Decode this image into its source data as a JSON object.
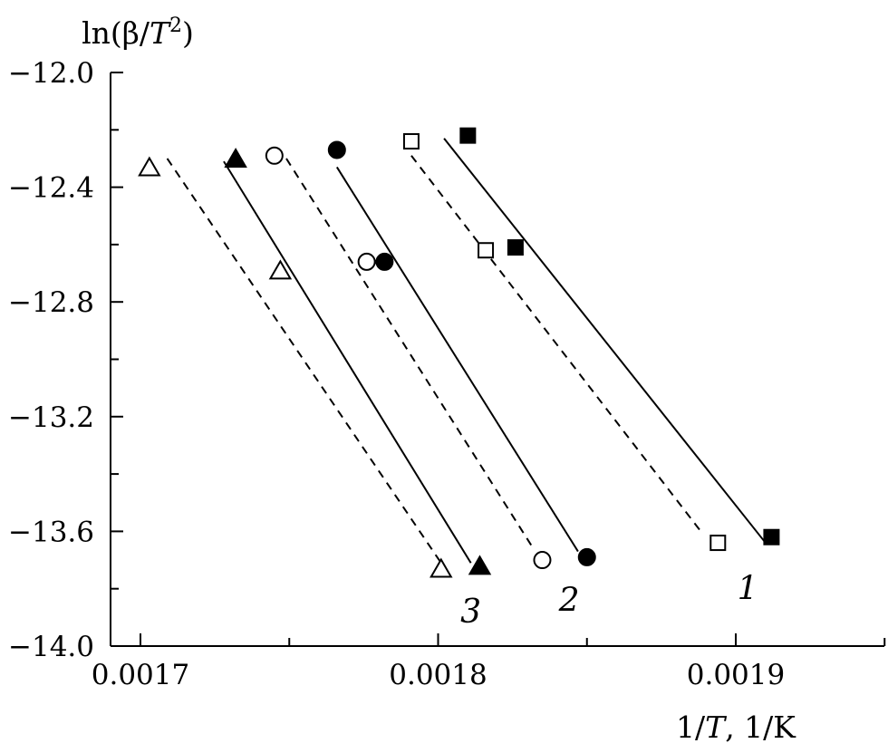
{
  "chart_data": {
    "type": "scatter",
    "title": "",
    "ylabel": "ln(β/T²)",
    "xlabel": "1/T, 1/K",
    "xlim": [
      0.0169,
      0.00195
    ],
    "ylim": [
      -14.0,
      -12.0
    ],
    "x_ticks": [
      {
        "value": 0.0017,
        "label": "0.0017"
      },
      {
        "value": 0.0018,
        "label": "0.0018"
      },
      {
        "value": 0.0019,
        "label": "0.0019"
      }
    ],
    "y_ticks": [
      {
        "value": -12.0,
        "label": "−12.0"
      },
      {
        "value": -12.4,
        "label": "−12.4"
      },
      {
        "value": -12.8,
        "label": "−12.8"
      },
      {
        "value": -13.2,
        "label": "−13.2"
      },
      {
        "value": -13.6,
        "label": "−13.6"
      },
      {
        "value": -14.0,
        "label": "−14.0"
      }
    ],
    "x_minor_ticks": [
      0.00175,
      0.00185,
      0.00195
    ],
    "y_minor_ticks": [
      -12.2,
      -12.6,
      -13.0,
      -13.4,
      -13.8
    ],
    "grid": false,
    "legend": "none",
    "series": [
      {
        "marker": "filled-square",
        "line": "solid",
        "points": [
          [
            0.00181,
            -12.22
          ],
          [
            0.001826,
            -12.61
          ],
          [
            0.001912,
            -13.62
          ]
        ],
        "fit": [
          [
            0.001802,
            -12.23
          ],
          [
            0.00191,
            -13.64
          ]
        ]
      },
      {
        "marker": "open-square",
        "line": "dashed",
        "points": [
          [
            0.001791,
            -12.24
          ],
          [
            0.001816,
            -12.62
          ],
          [
            0.001894,
            -13.64
          ]
        ],
        "fit": [
          [
            0.001791,
            -12.29
          ],
          [
            0.001889,
            -13.61
          ]
        ]
      },
      {
        "marker": "filled-circle",
        "line": "solid",
        "points": [
          [
            0.001766,
            -12.27
          ],
          [
            0.001782,
            -12.66
          ],
          [
            0.00185,
            -13.69
          ]
        ],
        "fit": [
          [
            0.001766,
            -12.33
          ],
          [
            0.001847,
            -13.67
          ]
        ]
      },
      {
        "marker": "open-circle",
        "line": "dashed",
        "points": [
          [
            0.001745,
            -12.29
          ],
          [
            0.001776,
            -12.66
          ],
          [
            0.001835,
            -13.7
          ]
        ],
        "fit": [
          [
            0.001749,
            -12.3
          ],
          [
            0.001832,
            -13.66
          ]
        ]
      },
      {
        "marker": "filled-triangle",
        "line": "solid",
        "points": [
          [
            0.001732,
            -12.3
          ],
          [
            0.001814,
            -13.72
          ]
        ],
        "fit": [
          [
            0.001728,
            -12.31
          ],
          [
            0.001811,
            -13.71
          ]
        ]
      },
      {
        "marker": "open-triangle",
        "line": "dashed",
        "points": [
          [
            0.001703,
            -12.33
          ],
          [
            0.001747,
            -12.69
          ],
          [
            0.001801,
            -13.73
          ]
        ],
        "fit": [
          [
            0.001709,
            -12.3
          ],
          [
            0.001801,
            -13.71
          ]
        ]
      }
    ],
    "annotations": [
      {
        "text": "1",
        "x": 0.001904,
        "y": -13.8
      },
      {
        "text": "2",
        "x": 0.001844,
        "y": -13.84
      },
      {
        "text": "3",
        "x": 0.001811,
        "y": -13.88
      }
    ]
  }
}
